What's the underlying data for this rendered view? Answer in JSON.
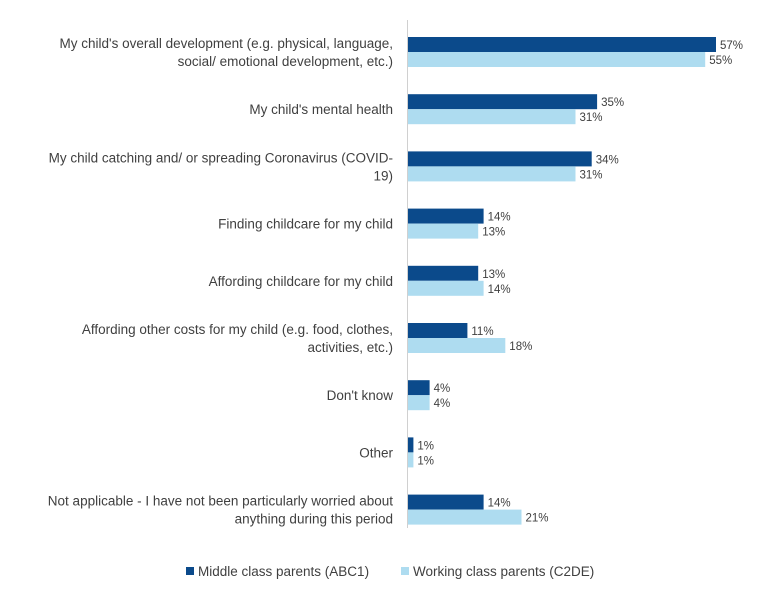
{
  "chart_data": {
    "type": "bar",
    "orientation": "horizontal",
    "categories": [
      [
        "My child's overall development (e.g. physical, language,",
        "social/ emotional development, etc.)"
      ],
      [
        "My child's mental health"
      ],
      [
        "My child catching and/ or spreading Coronavirus (COVID-",
        "19)"
      ],
      [
        "Finding childcare for my child"
      ],
      [
        "Affording childcare for my child"
      ],
      [
        "Affording other costs for my child (e.g. food, clothes,",
        "activities, etc.)"
      ],
      [
        "Don't know"
      ],
      [
        "Other"
      ],
      [
        "Not applicable - I have not been particularly worried about",
        "anything during this period"
      ]
    ],
    "series": [
      {
        "name": "Middle class parents (ABC1)",
        "color": "#0b4a8b",
        "values": [
          57,
          35,
          34,
          14,
          13,
          11,
          4,
          1,
          14
        ],
        "labels": [
          "57%",
          "35%",
          "34%",
          "14%",
          "13%",
          "11%",
          "4%",
          "1%",
          "14%"
        ]
      },
      {
        "name": "Working class parents (C2DE)",
        "color": "#aedcf0",
        "values": [
          55,
          31,
          31,
          13,
          14,
          18,
          4,
          1,
          21
        ],
        "labels": [
          "55%",
          "31%",
          "31%",
          "13%",
          "14%",
          "18%",
          "4%",
          "1%",
          "21%"
        ]
      }
    ],
    "xlim": [
      0,
      60
    ],
    "grid": false,
    "legend_position": "bottom"
  }
}
